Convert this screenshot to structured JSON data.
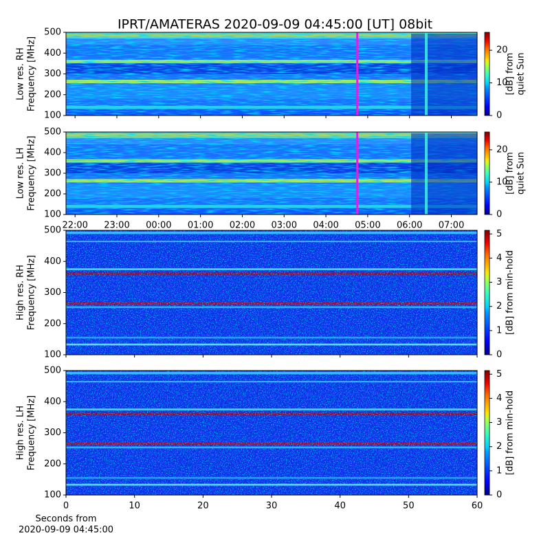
{
  "title": "IPRT/AMATERAS 2020-09-09 04:45:00 [UT]   08bit",
  "chart_data": [
    {
      "type": "spectrogram",
      "y_label": [
        "Low res. RH",
        "Frequency [MHz]"
      ],
      "ylim": [
        100,
        500
      ],
      "yticks": [
        100,
        200,
        300,
        400,
        500
      ],
      "xlim": [
        "21:47",
        "07:37"
      ],
      "marker": "04:45",
      "marker_color": "#e020e0",
      "colorbar_label": [
        "[dB] from",
        "quiet Sun"
      ],
      "clim": [
        0,
        25.5
      ],
      "cticks": [
        0,
        10,
        20
      ]
    },
    {
      "type": "spectrogram",
      "y_label": [
        "Low res. LH",
        "Frequency [MHz]"
      ],
      "ylim": [
        100,
        500
      ],
      "yticks": [
        100,
        200,
        300,
        400,
        500
      ],
      "xlim": [
        "21:47",
        "07:37"
      ],
      "xticks": [
        "22:00",
        "23:00",
        "00:00",
        "01:00",
        "02:00",
        "03:00",
        "04:00",
        "05:00",
        "06:00",
        "07:00"
      ],
      "marker": "04:45",
      "marker_color": "#e020e0",
      "colorbar_label": [
        "[dB] from",
        "quiet Sun"
      ],
      "clim": [
        0,
        25.5
      ],
      "cticks": [
        0,
        10,
        20
      ]
    },
    {
      "type": "spectrogram",
      "y_label": [
        "High res. RH",
        "Frequency [MHz]"
      ],
      "ylim": [
        100,
        500
      ],
      "yticks": [
        100,
        200,
        300,
        400,
        500
      ],
      "xlim": [
        0,
        60
      ],
      "colorbar_label": [
        "[dB] from min-hold"
      ],
      "clim": [
        0,
        5.15
      ],
      "cticks": [
        0,
        1,
        2,
        3,
        4,
        5
      ]
    },
    {
      "type": "spectrogram",
      "y_label": [
        "High res. LH",
        "Frequency [MHz]"
      ],
      "ylim": [
        100,
        500
      ],
      "yticks": [
        100,
        200,
        300,
        400,
        500
      ],
      "xlim": [
        0,
        60
      ],
      "xticks": [
        0,
        10,
        20,
        30,
        40,
        50,
        60
      ],
      "x_label": [
        "Seconds from",
        "2020-09-09 04:45:00"
      ],
      "colorbar_label": [
        "[dB] from min-hold"
      ],
      "clim": [
        0,
        5.15
      ],
      "cticks": [
        0,
        1,
        2,
        3,
        4,
        5
      ]
    }
  ]
}
